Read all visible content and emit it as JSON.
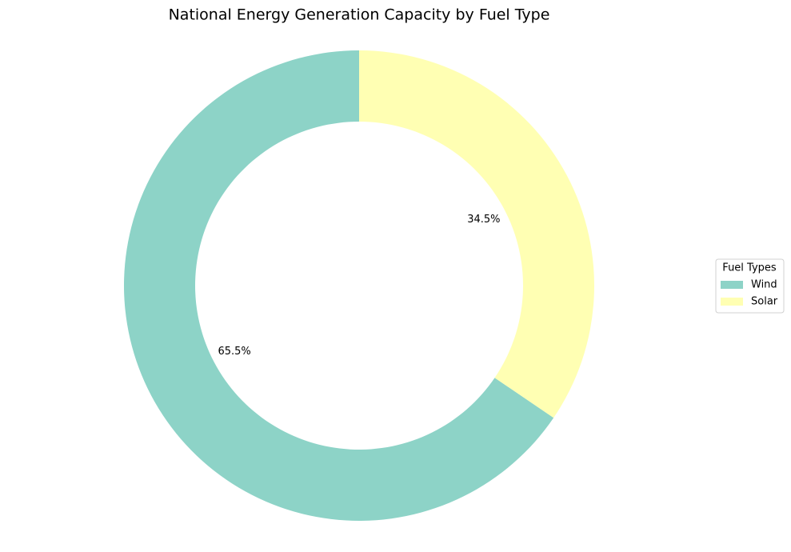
{
  "chart_data": {
    "type": "donut",
    "title": "National Energy Generation Capacity by Fuel Type",
    "categories": [
      "Wind",
      "Solar"
    ],
    "values": [
      65.5,
      34.5
    ],
    "value_labels": [
      "65.5%",
      "34.5%"
    ],
    "colors": [
      "#8dd3c7",
      "#ffffb3"
    ],
    "legend_title": "Fuel Types",
    "legend_position": "right"
  }
}
